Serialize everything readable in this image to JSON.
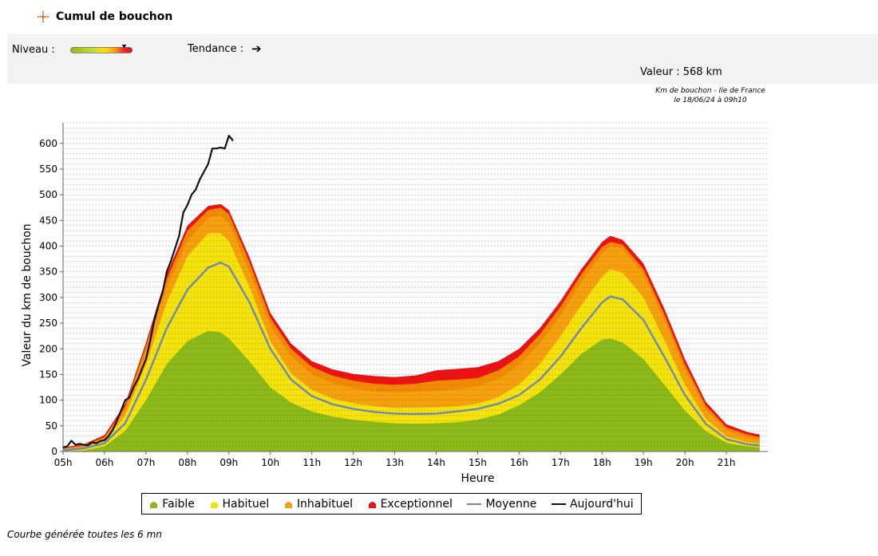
{
  "header": {
    "title": "Cumul de bouchon"
  },
  "panel": {
    "niveau_label": "Niveau :",
    "tendance_label": "Tendance :",
    "tendance_arrow": "➔",
    "valeur": "Valeur : 568 km",
    "niveau_level": 0.87
  },
  "caption": {
    "line1": "Km de bouchon - Ile de France",
    "line2": "le 18/06/24 à 09h10"
  },
  "footer": {
    "note": "Courbe générée toutes les 6 mn"
  },
  "colors": {
    "faible": "#8ab918",
    "habituel": "#f5e20a",
    "inhabituel": "#f7a00e",
    "orange_dark": "#f18a00",
    "exceptionnel": "#ee1111",
    "moyenne": "#6d88b5",
    "aujourdhui": "#111111"
  },
  "legend": [
    {
      "key": "faible",
      "label": "Faible"
    },
    {
      "key": "habituel",
      "label": "Habituel"
    },
    {
      "key": "inhabituel",
      "label": "Inhabituel"
    },
    {
      "key": "exceptionnel",
      "label": "Exceptionnel"
    },
    {
      "key": "moyenne",
      "label": "Moyenne"
    },
    {
      "key": "aujourdhui",
      "label": "Aujourd'hui"
    }
  ],
  "chart_data": {
    "type": "area",
    "title": "Km de bouchon - Ile de France le 18/06/24 à 09h10",
    "xlabel": "Heure",
    "ylabel": "Valeur du  km de bouchon",
    "xlim": [
      5,
      22
    ],
    "ylim": [
      0,
      640
    ],
    "y_ticks": [
      0,
      50,
      100,
      150,
      200,
      250,
      300,
      350,
      400,
      450,
      500,
      550,
      600
    ],
    "x_ticks": [
      {
        "v": 5,
        "label": "05h"
      },
      {
        "v": 6,
        "label": "06h"
      },
      {
        "v": 7,
        "label": "07h"
      },
      {
        "v": 8,
        "label": "08h"
      },
      {
        "v": 9,
        "label": "09h"
      },
      {
        "v": 10,
        "label": "10h"
      },
      {
        "v": 11,
        "label": "11h"
      },
      {
        "v": 12,
        "label": "12h"
      },
      {
        "v": 13,
        "label": "13h"
      },
      {
        "v": 14,
        "label": "14h"
      },
      {
        "v": 15,
        "label": "15h"
      },
      {
        "v": 16,
        "label": "16h"
      },
      {
        "v": 17,
        "label": "17h"
      },
      {
        "v": 18,
        "label": "18h"
      },
      {
        "v": 19,
        "label": "19h"
      },
      {
        "v": 20,
        "label": "20h"
      },
      {
        "v": 21,
        "label": "21h"
      }
    ],
    "grid": true,
    "x": [
      5.0,
      5.5,
      6.0,
      6.5,
      7.0,
      7.5,
      8.0,
      8.5,
      8.8,
      9.0,
      9.5,
      10.0,
      10.5,
      11.0,
      11.5,
      12.0,
      12.5,
      13.0,
      13.5,
      14.0,
      14.5,
      15.0,
      15.5,
      16.0,
      16.5,
      17.0,
      17.5,
      18.0,
      18.2,
      18.5,
      19.0,
      19.5,
      20.0,
      20.5,
      21.0,
      21.5,
      21.8
    ],
    "bands": [
      {
        "name": "Faible",
        "key": "faible",
        "values": [
          0,
          2,
          10,
          40,
          100,
          170,
          215,
          235,
          232,
          220,
          175,
          125,
          95,
          78,
          68,
          62,
          58,
          55,
          54,
          55,
          57,
          62,
          72,
          90,
          115,
          150,
          190,
          218,
          220,
          212,
          180,
          130,
          80,
          40,
          17,
          10,
          8
        ]
      },
      {
        "name": "Habituel",
        "key": "habituel",
        "values": [
          3,
          8,
          20,
          70,
          170,
          290,
          380,
          425,
          425,
          410,
          320,
          215,
          152,
          120,
          103,
          94,
          88,
          85,
          85,
          86,
          88,
          93,
          106,
          130,
          170,
          225,
          285,
          340,
          355,
          348,
          300,
          218,
          130,
          64,
          29,
          18,
          15
        ]
      },
      {
        "name": "Inhabituel",
        "key": "inhabituel",
        "values": [
          5,
          10,
          25,
          80,
          195,
          320,
          410,
          455,
          460,
          445,
          350,
          245,
          185,
          150,
          133,
          123,
          117,
          115,
          116,
          118,
          121,
          127,
          141,
          168,
          210,
          265,
          330,
          385,
          400,
          395,
          345,
          258,
          160,
          82,
          41,
          27,
          22
        ]
      },
      {
        "name": "Inhabituel (foncé)",
        "key": "orange_dark",
        "values": [
          6,
          12,
          28,
          88,
          205,
          335,
          430,
          470,
          475,
          462,
          368,
          260,
          200,
          165,
          148,
          138,
          132,
          130,
          132,
          138,
          140,
          143,
          158,
          185,
          228,
          282,
          345,
          398,
          408,
          403,
          355,
          268,
          170,
          90,
          47,
          33,
          28
        ]
      },
      {
        "name": "Exceptionnel",
        "key": "exceptionnel",
        "values": [
          8,
          14,
          32,
          93,
          212,
          345,
          440,
          478,
          482,
          470,
          378,
          270,
          210,
          176,
          160,
          151,
          147,
          145,
          148,
          158,
          161,
          164,
          176,
          200,
          240,
          293,
          355,
          408,
          420,
          412,
          366,
          279,
          180,
          97,
          53,
          38,
          33
        ]
      }
    ],
    "series": [
      {
        "name": "Moyenne",
        "key": "moyenne",
        "x": [
          5.0,
          5.5,
          6.0,
          6.5,
          7.0,
          7.5,
          8.0,
          8.5,
          8.8,
          9.0,
          9.5,
          10.0,
          10.5,
          11.0,
          11.5,
          12.0,
          12.5,
          13.0,
          13.5,
          14.0,
          14.5,
          15.0,
          15.5,
          16.0,
          16.5,
          17.0,
          17.5,
          18.0,
          18.2,
          18.5,
          19.0,
          19.5,
          20.0,
          20.5,
          21.0,
          21.5,
          21.8
        ],
        "values": [
          2,
          6,
          16,
          55,
          140,
          240,
          315,
          358,
          368,
          360,
          290,
          200,
          140,
          108,
          92,
          83,
          77,
          74,
          73,
          74,
          78,
          83,
          93,
          110,
          140,
          185,
          240,
          290,
          302,
          296,
          256,
          185,
          110,
          54,
          24,
          14,
          12
        ]
      },
      {
        "name": "Aujourd'hui",
        "key": "aujourdhui",
        "x": [
          5.0,
          5.1,
          5.2,
          5.3,
          5.4,
          5.5,
          5.6,
          5.7,
          5.8,
          5.9,
          6.0,
          6.1,
          6.2,
          6.3,
          6.4,
          6.5,
          6.6,
          6.7,
          6.8,
          6.9,
          7.0,
          7.1,
          7.2,
          7.3,
          7.4,
          7.5,
          7.6,
          7.7,
          7.8,
          7.9,
          8.0,
          8.1,
          8.2,
          8.3,
          8.4,
          8.5,
          8.6,
          8.7,
          8.8,
          8.9,
          9.0,
          9.1
        ],
        "values": [
          8,
          10,
          21,
          13,
          15,
          13,
          12,
          18,
          16,
          20,
          22,
          30,
          42,
          60,
          80,
          100,
          105,
          125,
          140,
          160,
          180,
          215,
          255,
          285,
          310,
          350,
          370,
          395,
          420,
          465,
          480,
          500,
          510,
          530,
          545,
          560,
          590,
          590,
          592,
          590,
          615,
          605
        ]
      }
    ]
  }
}
